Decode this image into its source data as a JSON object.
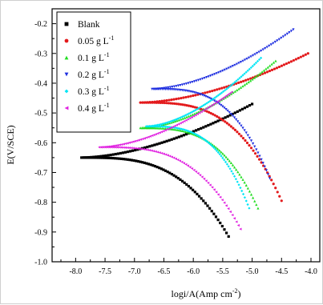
{
  "chart_data": {
    "type": "scatter",
    "title": "",
    "xlabel": "logi/A(Amp cm",
    "xlabel_sup": "-2",
    "xlabel_close": ")",
    "ylabel": "E(V/SCE)",
    "xlim": [
      -8.4,
      -3.85
    ],
    "ylim": [
      -1.0,
      -0.15
    ],
    "xticks": [
      "-8.0",
      "-7.5",
      "-7.0",
      "-6.5",
      "-6.0",
      "-5.5",
      "-5.0",
      "-4.5",
      "-4.0"
    ],
    "xtick_values": [
      -8.0,
      -7.5,
      -7.0,
      -6.5,
      -6.0,
      -5.5,
      -5.0,
      -4.5,
      -4.0
    ],
    "yticks": [
      "-0.2",
      "-0.3",
      "-0.4",
      "-0.5",
      "-0.6",
      "-0.7",
      "-0.8",
      "-0.9",
      "-1.0"
    ],
    "ytick_values": [
      -0.2,
      -0.3,
      -0.4,
      -0.5,
      -0.6,
      -0.7,
      -0.8,
      -0.9,
      -1.0
    ],
    "grid": false,
    "legend_position": "top-left",
    "series": [
      {
        "name": "Blank",
        "sup": "",
        "color": "#000000",
        "marker": "square",
        "Ecorr": -0.65,
        "x_start": -7.9,
        "anodic": {
          "x_end": -5.0,
          "y_end": -0.47
        },
        "cathodic": {
          "x_end": -5.4,
          "y_end": -0.915
        }
      },
      {
        "name": "0.05 g L",
        "sup": "-1",
        "color": "#e31a1c",
        "marker": "circle",
        "Ecorr": -0.465,
        "x_start": -6.9,
        "anodic": {
          "x_end": -4.05,
          "y_end": -0.3
        },
        "cathodic": {
          "x_end": -4.5,
          "y_end": -0.795
        }
      },
      {
        "name": "0.1 g L",
        "sup": "-1",
        "color": "#22dd22",
        "marker": "triangle-up",
        "Ecorr": -0.55,
        "x_start": -6.9,
        "anodic": {
          "x_end": -4.6,
          "y_end": -0.325
        },
        "cathodic": {
          "x_end": -4.9,
          "y_end": -0.82
        }
      },
      {
        "name": "0.2 g L",
        "sup": "-1",
        "color": "#1f2fe0",
        "marker": "triangle-down",
        "Ecorr": -0.42,
        "x_start": -6.7,
        "anodic": {
          "x_end": -4.3,
          "y_end": -0.22
        },
        "cathodic": {
          "x_end": -4.7,
          "y_end": -0.72
        }
      },
      {
        "name": "0.3 g L",
        "sup": "-1",
        "color": "#00e5f5",
        "marker": "diamond",
        "Ecorr": -0.545,
        "x_start": -6.8,
        "anodic": {
          "x_end": -4.85,
          "y_end": -0.315
        },
        "cathodic": {
          "x_end": -5.05,
          "y_end": -0.82
        }
      },
      {
        "name": "0.4 g L",
        "sup": "-1",
        "color": "#e020e0",
        "marker": "triangle-left",
        "Ecorr": -0.615,
        "x_start": -7.6,
        "anodic": {
          "x_end": -5.35,
          "y_end": -0.43
        },
        "cathodic": {
          "x_end": -5.2,
          "y_end": -0.89
        }
      }
    ]
  }
}
